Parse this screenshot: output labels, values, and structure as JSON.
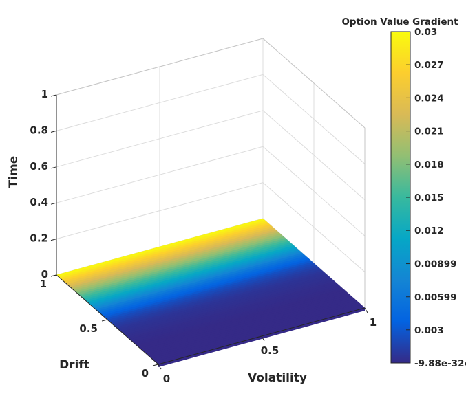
{
  "chart_data": {
    "type": "surface3d",
    "title": "",
    "xlabel": "Volatility",
    "ylabel": "Drift",
    "zlabel": "Time",
    "xlim": [
      0,
      1
    ],
    "ylim": [
      0,
      1
    ],
    "zlim": [
      0,
      1
    ],
    "x_ticks": [
      "0",
      "0.5",
      "1"
    ],
    "y_ticks": [
      "0",
      "0.5",
      "1"
    ],
    "z_ticks": [
      "0",
      "0.2",
      "0.4",
      "0.6",
      "0.8",
      "1"
    ],
    "grid": true,
    "surface": {
      "z_value": 0,
      "description_axis": "gradient varies along Drift, constant along Volatility",
      "drift": [
        0.0,
        0.2,
        0.3,
        0.4,
        0.45,
        0.5,
        0.55,
        0.6,
        0.65,
        0.7,
        0.75,
        0.8,
        0.85,
        0.9,
        0.95,
        1.0
      ],
      "gradient": [
        0,
        0,
        0.0002,
        0.0006,
        0.0012,
        0.0022,
        0.0038,
        0.006,
        0.009,
        0.012,
        0.015,
        0.018,
        0.021,
        0.024,
        0.027,
        0.03
      ]
    },
    "colorbar": {
      "label": "Option Value Gradient",
      "min": 0,
      "max": 0.03,
      "tick_labels": [
        "0.03",
        "0.027",
        "0.024",
        "0.021",
        "0.018",
        "0.015",
        "0.012",
        "0.00899",
        "0.00599",
        "0.003",
        "-9.88e-324"
      ],
      "tick_values": [
        0.03,
        0.027,
        0.024,
        0.021,
        0.018,
        0.015,
        0.012,
        0.00899,
        0.00599,
        0.003,
        0
      ],
      "colormap": [
        "#352a87",
        "#0363e1",
        "#1485d4",
        "#06a7c6",
        "#38b99e",
        "#92bf73",
        "#d9ba56",
        "#fcce2e",
        "#f9fb0e"
      ]
    }
  }
}
